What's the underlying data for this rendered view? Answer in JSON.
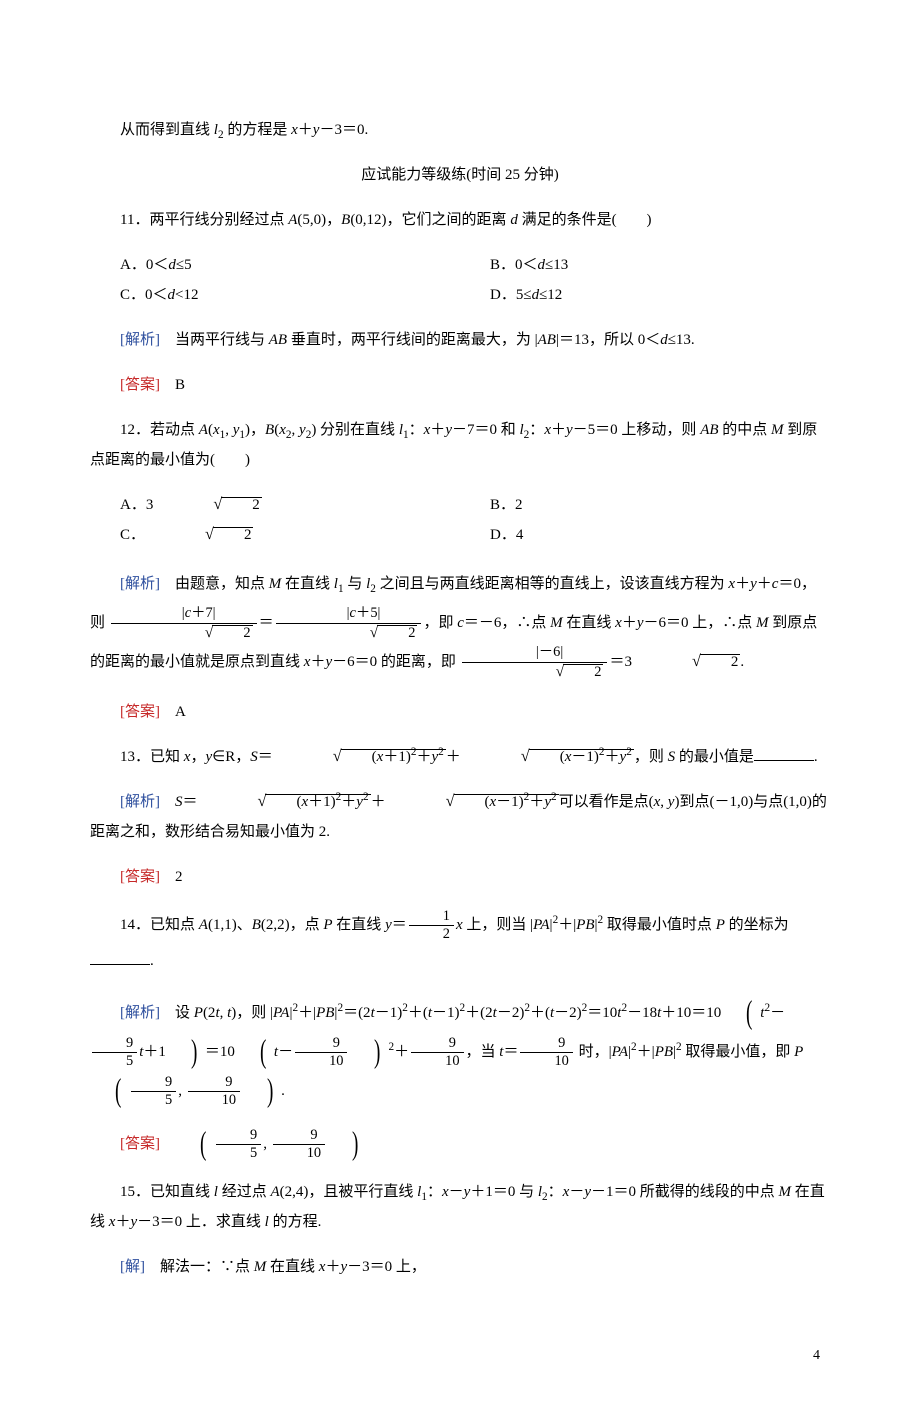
{
  "colors": {
    "text": "#000000",
    "blue": "#2e4f9e",
    "red": "#c62828",
    "background": "#ffffff"
  },
  "typography": {
    "body_font": "SimSun / STSong serif",
    "math_font": "Times New Roman italic",
    "body_size_pt": 15,
    "line_height": 2.0
  },
  "labels": {
    "analysis": "[解析]",
    "answer": "[答案]",
    "solution": "[解]"
  },
  "intro_line": "从而得到直线 l₂ 的方程是 x＋y－3＝0.",
  "section_heading": "应试能力等级练(时间 25 分钟)",
  "q11": {
    "number": "11．",
    "stem": "两平行线分别经过点 A(5,0)，B(0,12)，它们之间的距离 d 满足的条件是(　　)",
    "options": {
      "A": "A．0＜d≤5",
      "B": "B．0＜d≤13",
      "C": "C．0＜d<12",
      "D": "D．5≤d≤12"
    },
    "analysis": "当两平行线与 AB 垂直时，两平行线间的距离最大，为 |AB|＝13，所以 0＜d≤13.",
    "answer": "B"
  },
  "q12": {
    "number": "12．",
    "stem_a": "若动点 A(x₁, y₁)，B(x₂, y₂) 分别在直线 l₁：x＋y－7＝0 和 l₂：x＋y－5＝0 上移动，则 AB 的中点 M 到原点距离的最小值为(　　)",
    "options": {
      "A": "A．3√2",
      "B": "B．2",
      "C": "C．√2",
      "D": "D．4"
    },
    "analysis_a": "由题意，知点 M 在直线 l₁ 与 l₂ 之间且与两直线距离相等的直线上，设该直线方程为 x＋y＋c＝0，则 ",
    "analysis_b": "，即 c＝－6，∴点 M 在直线 x＋y－6＝0 上，∴点 M 到原点的距离的最小值就是原点到直线 x＋y－6＝0 的距离，即 ",
    "frac1": {
      "num": "|c＋7|",
      "den": "√2"
    },
    "frac2": {
      "num": "|c＋5|",
      "den": "√2"
    },
    "frac3": {
      "num": "|－6|",
      "den": "√2"
    },
    "analysis_tail": "＝3√2.",
    "answer": "A"
  },
  "q13": {
    "number": "13．",
    "stem_a": "已知 x，y∈R，S＝",
    "stem_b": "，则 S 的最小值是",
    "expr_rad1": "(x＋1)²＋y²",
    "expr_rad2": "(x－1)²＋y²",
    "analysis_a": "S＝",
    "analysis_b": "可以看作是点(x, y)到点(－1,0)与点(1,0)的距离之和，数形结合易知最小值为 2.",
    "answer": "2"
  },
  "q14": {
    "number": "14．",
    "stem_a": "已知点 A(1,1)、B(2,2)，点 P 在直线 y＝",
    "stem_b": "x 上，则当 |PA|²＋|PB|² 取得最小值时点 P 的坐标为",
    "frac_half": {
      "num": "1",
      "den": "2"
    },
    "analysis_a": "设 P(2t, t)，则 |PA|²＋|PB|²＝(2t－1)²＋(t－1)²＋(2t－2)²＋(t－2)²＝10t² －18t＋10＝10",
    "analysis_paren1_inner": "t²－(9/5)t＋1",
    "frac_9_5": {
      "num": "9",
      "den": "5"
    },
    "analysis_mid": "＝10",
    "frac_9_10": {
      "num": "9",
      "den": "10"
    },
    "analysis_b": "，当 t＝",
    "analysis_c": " 时，|PA|²＋|PB|² 取得最小值，即 P",
    "answer_tuple": "(9/5, 9/10)"
  },
  "q15": {
    "number": "15．",
    "stem": "已知直线 l 经过点 A(2,4)，且被平行直线 l₁：x－y＋1＝0 与 l₂：x－y－1＝0 所截得的线段的中点 M 在直线 x＋y－3＝0 上．求直线 l 的方程.",
    "solution": "解法一：∵点 M 在直线 x＋y－3＝0 上，"
  },
  "page_number": "4"
}
